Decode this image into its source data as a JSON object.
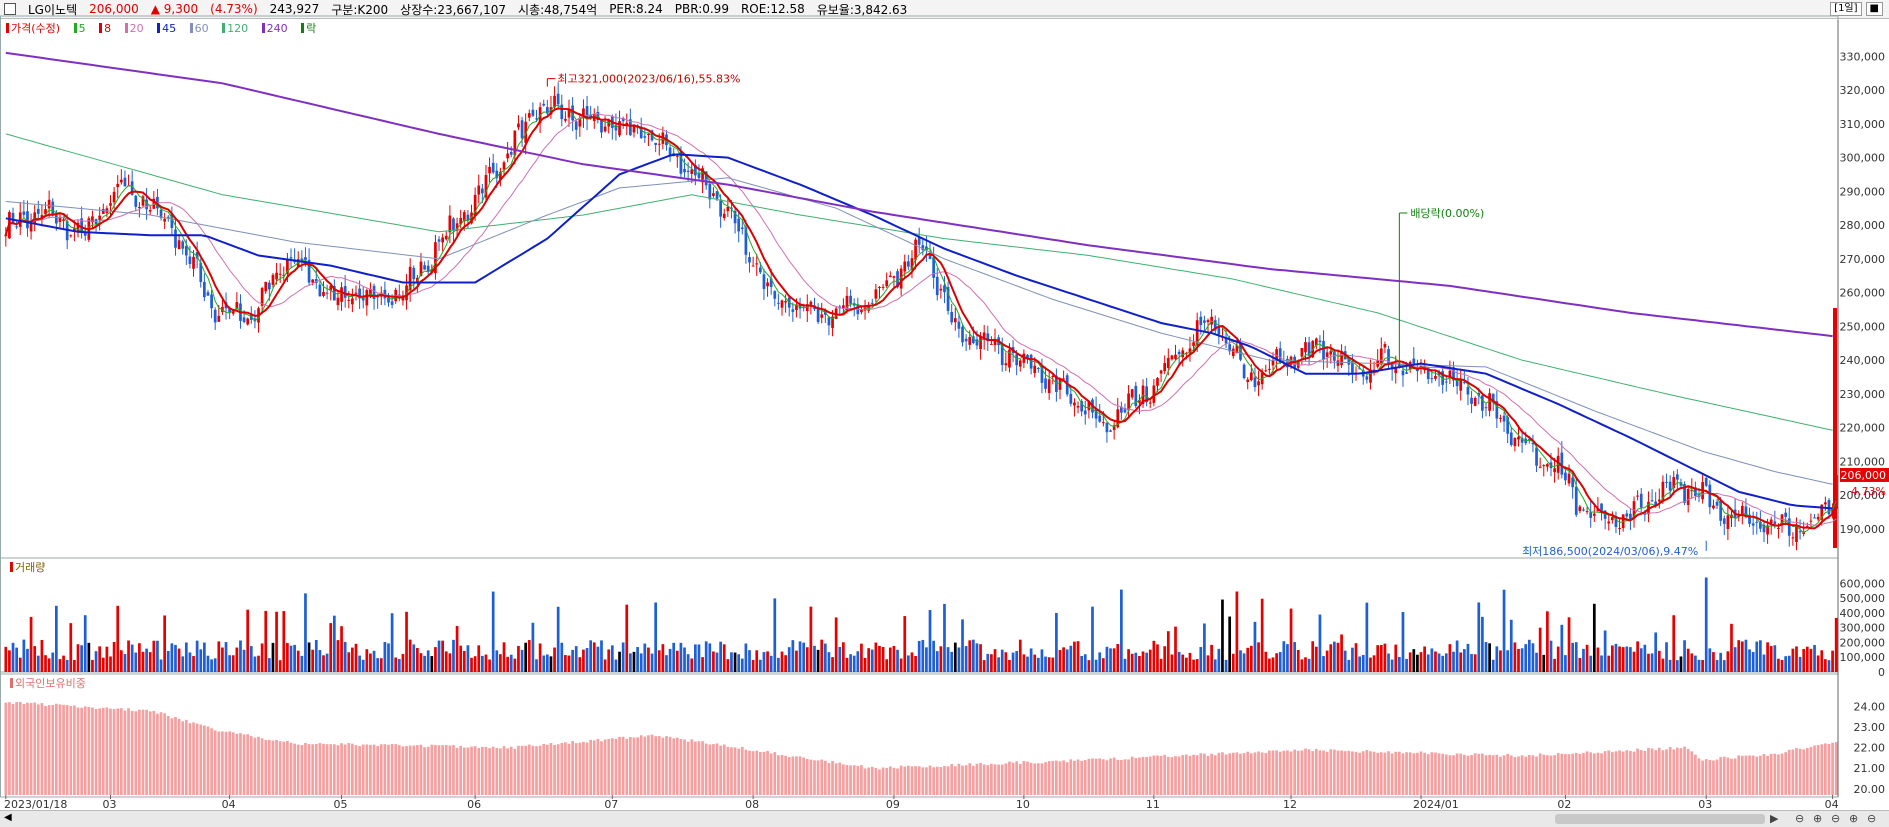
{
  "header": {
    "stock_name": "LG이노텍",
    "price": "206,000",
    "change": "▲ 9,300",
    "change_pct": "(4.73%)",
    "volume": "243,927",
    "market": "구분:K200",
    "shares": "상장수:23,667,107",
    "market_cap": "시총:48,754억",
    "per": "PER:8.24",
    "pbr": "PBR:0.99",
    "roe": "ROE:12.58",
    "float_ratio": "유보율:3,842.63",
    "period": "[1일]"
  },
  "legend": {
    "price_label": "가격(수정)",
    "ma": [
      "5",
      "8",
      "20",
      "45",
      "60",
      "120",
      "240"
    ],
    "ex_label": "락"
  },
  "panels": {
    "volume_title": "거래량",
    "foreign_title": "외국인보유비중"
  },
  "annotations": {
    "high": "최고321,000(2023/06/16),55.83%",
    "low": "최저186,500(2024/03/06),9.47%",
    "dividend": "배당락(0.00%)",
    "last_price": "206,000",
    "last_pct": "4.73%"
  },
  "colors": {
    "up": "#e60000",
    "down": "#1f5fd6",
    "ma5": "#22aa22",
    "ma8": "#dd0000",
    "ma20": "#d070b0",
    "ma45": "#1020c8",
    "ma60": "#8090b8",
    "ma120": "#40b070",
    "ma240": "#8030c0",
    "foreign": "#f4a0a0"
  },
  "chart_data": {
    "type": "candlestick",
    "price_axis": {
      "min": 182000,
      "max": 336000,
      "ticks": [
        190000,
        200000,
        210000,
        220000,
        230000,
        240000,
        250000,
        260000,
        270000,
        280000,
        290000,
        300000,
        310000,
        320000,
        330000
      ]
    },
    "volume_axis": {
      "min": 0,
      "max": 650000,
      "ticks": [
        0,
        100000,
        200000,
        300000,
        400000,
        500000,
        600000
      ]
    },
    "foreign_axis": {
      "min": 19.7,
      "max": 24.8,
      "ticks": [
        20.0,
        21.0,
        22.0,
        23.0,
        24.0
      ]
    },
    "x_labels": [
      "2023/01/18",
      "03",
      "04",
      "05",
      "06",
      "07",
      "08",
      "09",
      "10",
      "11",
      "12",
      "2024/01",
      "02",
      "03",
      "04"
    ],
    "x_label_days": [
      0,
      29,
      62,
      93,
      130,
      168,
      207,
      246,
      282,
      318,
      356,
      392,
      432,
      471,
      506
    ],
    "price_key": [
      [
        0,
        279000
      ],
      [
        10,
        284000
      ],
      [
        22,
        277000
      ],
      [
        32,
        292000
      ],
      [
        46,
        280000
      ],
      [
        58,
        255000
      ],
      [
        68,
        252000
      ],
      [
        78,
        271000
      ],
      [
        92,
        258000
      ],
      [
        110,
        260000
      ],
      [
        128,
        285000
      ],
      [
        148,
        315000
      ],
      [
        165,
        310000
      ],
      [
        178,
        307000
      ],
      [
        196,
        290000
      ],
      [
        212,
        260000
      ],
      [
        226,
        253000
      ],
      [
        240,
        258000
      ],
      [
        254,
        275000
      ],
      [
        262,
        250000
      ],
      [
        270,
        245000
      ],
      [
        284,
        238000
      ],
      [
        296,
        228000
      ],
      [
        304,
        220000
      ],
      [
        316,
        231000
      ],
      [
        326,
        244000
      ],
      [
        334,
        252000
      ],
      [
        344,
        235000
      ],
      [
        364,
        244000
      ],
      [
        374,
        236000
      ],
      [
        382,
        240000
      ],
      [
        394,
        237000
      ],
      [
        410,
        227000
      ],
      [
        424,
        212000
      ],
      [
        430,
        208000
      ],
      [
        436,
        197000
      ],
      [
        444,
        192000
      ],
      [
        454,
        196000
      ],
      [
        462,
        203000
      ],
      [
        470,
        200000
      ],
      [
        478,
        193000
      ],
      [
        490,
        191000
      ],
      [
        500,
        190000
      ],
      [
        506,
        200000
      ],
      [
        507,
        206000
      ]
    ],
    "ma240_key": [
      [
        0,
        331000
      ],
      [
        60,
        322000
      ],
      [
        120,
        307000
      ],
      [
        160,
        298000
      ],
      [
        200,
        292000
      ],
      [
        240,
        284000
      ],
      [
        300,
        274000
      ],
      [
        350,
        267000
      ],
      [
        400,
        262000
      ],
      [
        450,
        254000
      ],
      [
        507,
        247000
      ]
    ],
    "ma120_key": [
      [
        0,
        307000
      ],
      [
        60,
        289000
      ],
      [
        120,
        278000
      ],
      [
        160,
        283000
      ],
      [
        190,
        289000
      ],
      [
        220,
        283000
      ],
      [
        260,
        276000
      ],
      [
        300,
        271000
      ],
      [
        340,
        264000
      ],
      [
        380,
        254000
      ],
      [
        420,
        240000
      ],
      [
        460,
        230000
      ],
      [
        507,
        219000
      ]
    ],
    "ma60_key": [
      [
        0,
        287000
      ],
      [
        40,
        283000
      ],
      [
        80,
        275000
      ],
      [
        120,
        270000
      ],
      [
        150,
        283000
      ],
      [
        170,
        291000
      ],
      [
        200,
        294000
      ],
      [
        230,
        285000
      ],
      [
        260,
        270000
      ],
      [
        290,
        258000
      ],
      [
        320,
        248000
      ],
      [
        350,
        240000
      ],
      [
        380,
        239000
      ],
      [
        410,
        238000
      ],
      [
        440,
        225000
      ],
      [
        470,
        213000
      ],
      [
        490,
        207000
      ],
      [
        507,
        203000
      ]
    ],
    "ma45_key": [
      [
        0,
        282000
      ],
      [
        20,
        278000
      ],
      [
        40,
        277000
      ],
      [
        55,
        277000
      ],
      [
        70,
        271000
      ],
      [
        90,
        268000
      ],
      [
        110,
        263000
      ],
      [
        130,
        263000
      ],
      [
        150,
        276000
      ],
      [
        170,
        295000
      ],
      [
        185,
        301000
      ],
      [
        200,
        300000
      ],
      [
        220,
        292000
      ],
      [
        240,
        283000
      ],
      [
        260,
        273000
      ],
      [
        280,
        265000
      ],
      [
        300,
        258000
      ],
      [
        320,
        251000
      ],
      [
        334,
        248000
      ],
      [
        345,
        244000
      ],
      [
        360,
        236000
      ],
      [
        375,
        236000
      ],
      [
        392,
        239000
      ],
      [
        410,
        236000
      ],
      [
        430,
        227000
      ],
      [
        450,
        217000
      ],
      [
        465,
        209000
      ],
      [
        480,
        201000
      ],
      [
        495,
        197000
      ],
      [
        507,
        196000
      ]
    ]
  }
}
